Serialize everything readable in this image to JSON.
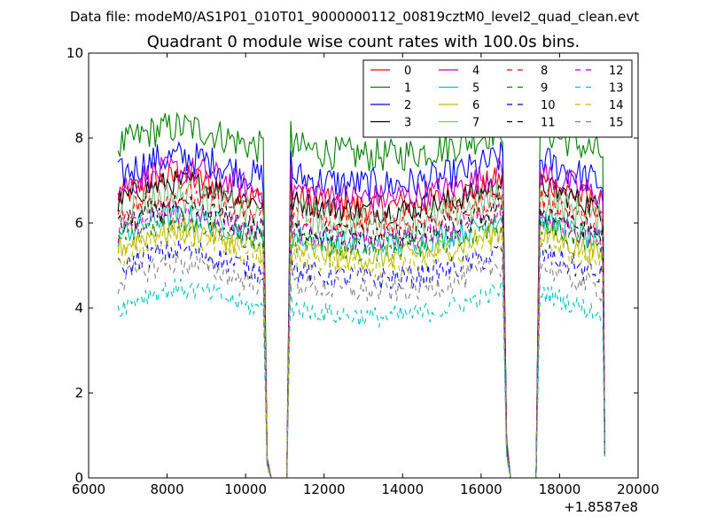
{
  "chart_data": {
    "type": "line",
    "suptitle": "Data file: modeM0/AS1P01_010T01_9000000112_00819cztM0_level2_quad_clean.evt",
    "title": "Quadrant 0 module wise count rates with 100.0s bins.",
    "xlabel": "",
    "ylabel": "",
    "xlim": [
      6000,
      20000
    ],
    "ylim": [
      0,
      10
    ],
    "x_offset_label": "+1.8587e8",
    "x_ticks": [
      6000,
      8000,
      10000,
      12000,
      14000,
      16000,
      18000,
      20000
    ],
    "x_tick_labels": [
      "6000",
      "8000",
      "10000",
      "12000",
      "14000",
      "16000",
      "18000",
      "20000"
    ],
    "y_ticks": [
      0,
      2,
      4,
      6,
      8,
      10
    ],
    "y_tick_labels": [
      "0",
      "2",
      "4",
      "6",
      "8",
      "10"
    ],
    "legend_location": "upper right",
    "orbit_segments": [
      {
        "start": 6750,
        "end": 10450
      },
      {
        "start": 11150,
        "end": 16550
      },
      {
        "start": 17500,
        "end": 19150
      }
    ],
    "gap_points": [
      {
        "x": 10450,
        "rel": 0.95
      },
      {
        "x": 10550,
        "rel": 0.06
      },
      {
        "x": 10650,
        "rel": 0.0
      },
      {
        "x": 11050,
        "rel": 0.0
      },
      {
        "x": 11150,
        "rel": 0.5
      },
      {
        "x": 16550,
        "rel": 0.95
      },
      {
        "x": 16650,
        "rel": 0.12
      },
      {
        "x": 16750,
        "rel": 0.0
      },
      {
        "x": 17400,
        "rel": 0.0
      },
      {
        "x": 17500,
        "rel": 0.6
      },
      {
        "x": 19150,
        "rel": 0.09
      }
    ],
    "series": [
      {
        "name": "0",
        "color": "#ff0000",
        "dash": "solid",
        "mean": 6.6,
        "amp": 0.35
      },
      {
        "name": "1",
        "color": "#008000",
        "dash": "solid",
        "mean": 7.8,
        "amp": 0.4
      },
      {
        "name": "2",
        "color": "#0000ff",
        "dash": "solid",
        "mean": 7.1,
        "amp": 0.4
      },
      {
        "name": "3",
        "color": "#000000",
        "dash": "solid",
        "mean": 6.5,
        "amp": 0.3
      },
      {
        "name": "4",
        "color": "#bf00bf",
        "dash": "solid",
        "mean": 6.8,
        "amp": 0.35
      },
      {
        "name": "5",
        "color": "#00bfbf",
        "dash": "solid",
        "mean": 5.7,
        "amp": 0.3
      },
      {
        "name": "6",
        "color": "#bfbf00",
        "dash": "solid",
        "mean": 5.4,
        "amp": 0.3
      },
      {
        "name": "7",
        "color": "#80c080",
        "dash": "solid",
        "mean": 6.2,
        "amp": 0.4
      },
      {
        "name": "8",
        "color": "#ff0000",
        "dash": "dashed",
        "mean": 6.2,
        "amp": 0.3
      },
      {
        "name": "9",
        "color": "#008000",
        "dash": "dashed",
        "mean": 5.6,
        "amp": 0.3
      },
      {
        "name": "10",
        "color": "#0000ff",
        "dash": "dashed",
        "mean": 4.9,
        "amp": 0.3
      },
      {
        "name": "11",
        "color": "#000000",
        "dash": "dashed",
        "mean": 5.9,
        "amp": 0.3
      },
      {
        "name": "12",
        "color": "#bf00bf",
        "dash": "dashed",
        "mean": 5.8,
        "amp": 0.3
      },
      {
        "name": "13",
        "color": "#00bfbf",
        "dash": "dashed",
        "mean": 4.0,
        "amp": 0.25
      },
      {
        "name": "14",
        "color": "#bfbf00",
        "dash": "dashed",
        "mean": 5.2,
        "amp": 0.3
      },
      {
        "name": "15",
        "color": "#808080",
        "dash": "dashed",
        "mean": 4.6,
        "amp": 0.3
      }
    ]
  }
}
